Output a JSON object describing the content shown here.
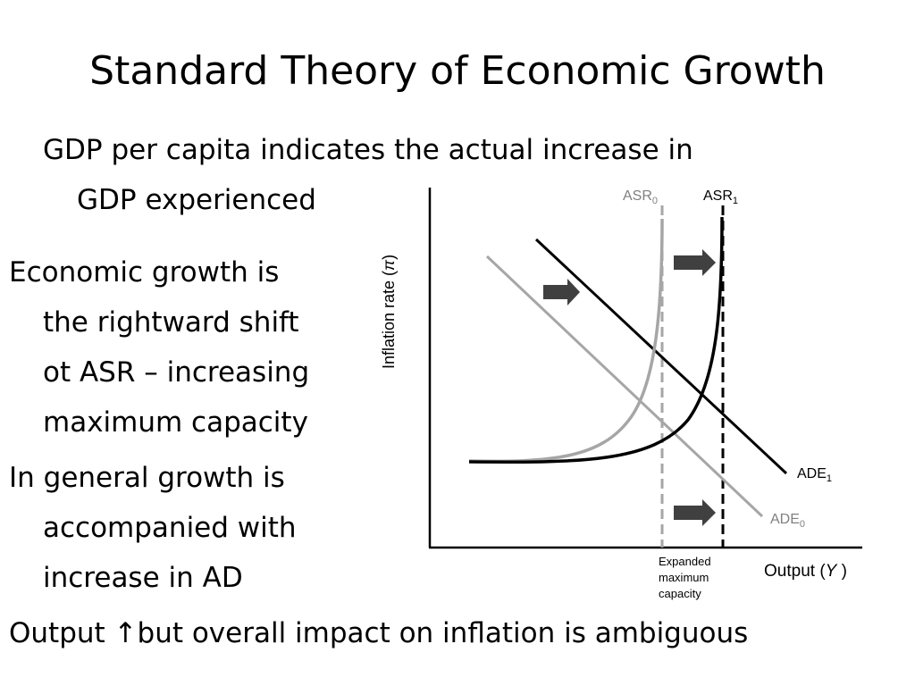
{
  "slide": {
    "title": "Standard Theory of Economic Growth",
    "intro": [
      "GDP per capita indicates the actual increase in",
      "GDP experienced"
    ],
    "bullet1": [
      "Economic growth is",
      "the rightward shift",
      "ot ASR – increasing",
      "maximum capacity"
    ],
    "bullet2": [
      "In general growth is",
      "accompanied with",
      "increase in AD"
    ],
    "bottom_line": "Output ↑but overall impact on inflation is ambiguous"
  },
  "diagram": {
    "y_axis_label": "Inflation rate (",
    "y_axis_symbol": "π",
    "y_axis_close": ")",
    "x_axis_label": "Output (",
    "x_axis_symbol": "Y",
    "x_axis_close": " )",
    "asr0_label": "ASR",
    "asr0_sub": "0",
    "asr1_label": "ASR",
    "asr1_sub": "1",
    "ade1_label": "ADE",
    "ade1_sub": "1",
    "ade0_label": "ADE",
    "ade0_sub": "0",
    "capacity_caption": [
      "Expanded",
      "maximum",
      "capacity"
    ],
    "colors": {
      "new_curve": "#000000",
      "old_curve": "#a6a6a6",
      "arrow": "#404040",
      "old_label": "#808080"
    }
  }
}
